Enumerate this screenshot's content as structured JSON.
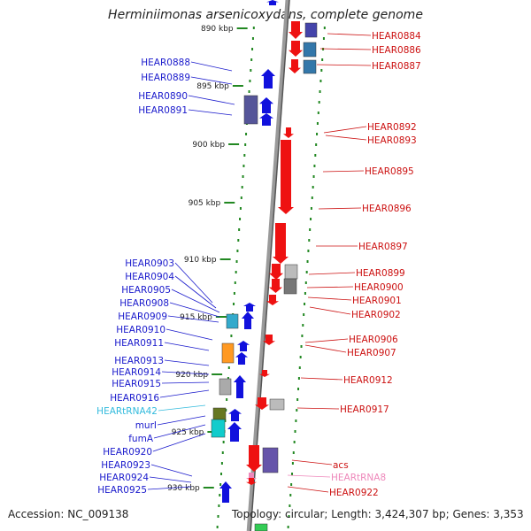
{
  "title": "Herminiimonas arsenicoxydans, complete genome",
  "accession": "Accession: NC_009138",
  "topology": "Topology: circular; Length: 3,424,307 bp; Genes: 3,353",
  "colors": {
    "backbone": "#888888",
    "tick": "#228822",
    "tick_label": "#222222",
    "left_label": "#1a1acc",
    "right_label": "#cc1111",
    "trna_left": "#33bbdd",
    "trna_right": "#ee88bb"
  },
  "kbp_ticks": [
    {
      "label": "890 kbp",
      "gene": "HEAR0884"
    },
    {
      "label": "895 kbp",
      "gene": "HEAR0889"
    },
    {
      "label": "900 kbp",
      "gene": "HEAR0892"
    },
    {
      "label": "905 kbp",
      "gene": "HEAR0896"
    },
    {
      "label": "910 kbp",
      "gene": "HEAR0899"
    },
    {
      "label": "915 kbp",
      "gene": "HEAR0909"
    },
    {
      "label": "920 kbp",
      "gene": "HEAR0914"
    },
    {
      "label": "925 kbp",
      "gene": "fumA"
    },
    {
      "label": "930 kbp",
      "gene": "HEAR0925"
    }
  ],
  "left_labels": [
    "HEAR0888",
    "HEAR0889",
    "HEAR0890",
    "HEAR0891",
    "HEAR0903",
    "HEAR0904",
    "HEAR0905",
    "HEAR0908",
    "HEAR0909",
    "HEAR0910",
    "HEAR0911",
    "HEAR0913",
    "HEAR0914",
    "HEAR0915",
    "HEAR0916",
    "HEARtRNA42",
    "murI",
    "fumA",
    "HEAR0920",
    "HEAR0923",
    "HEAR0924",
    "HEAR0925"
  ],
  "right_labels": [
    "HEAR0884",
    "HEAR0886",
    "HEAR0887",
    "HEAR0892",
    "HEAR0893",
    "HEAR0895",
    "HEAR0896",
    "HEAR0897",
    "HEAR0899",
    "HEAR0900",
    "HEAR0901",
    "HEAR0902",
    "HEAR0906",
    "HEAR0907",
    "HEAR0912",
    "HEAR0917",
    "acs",
    "HEARtRNA8",
    "HEAR0922"
  ]
}
